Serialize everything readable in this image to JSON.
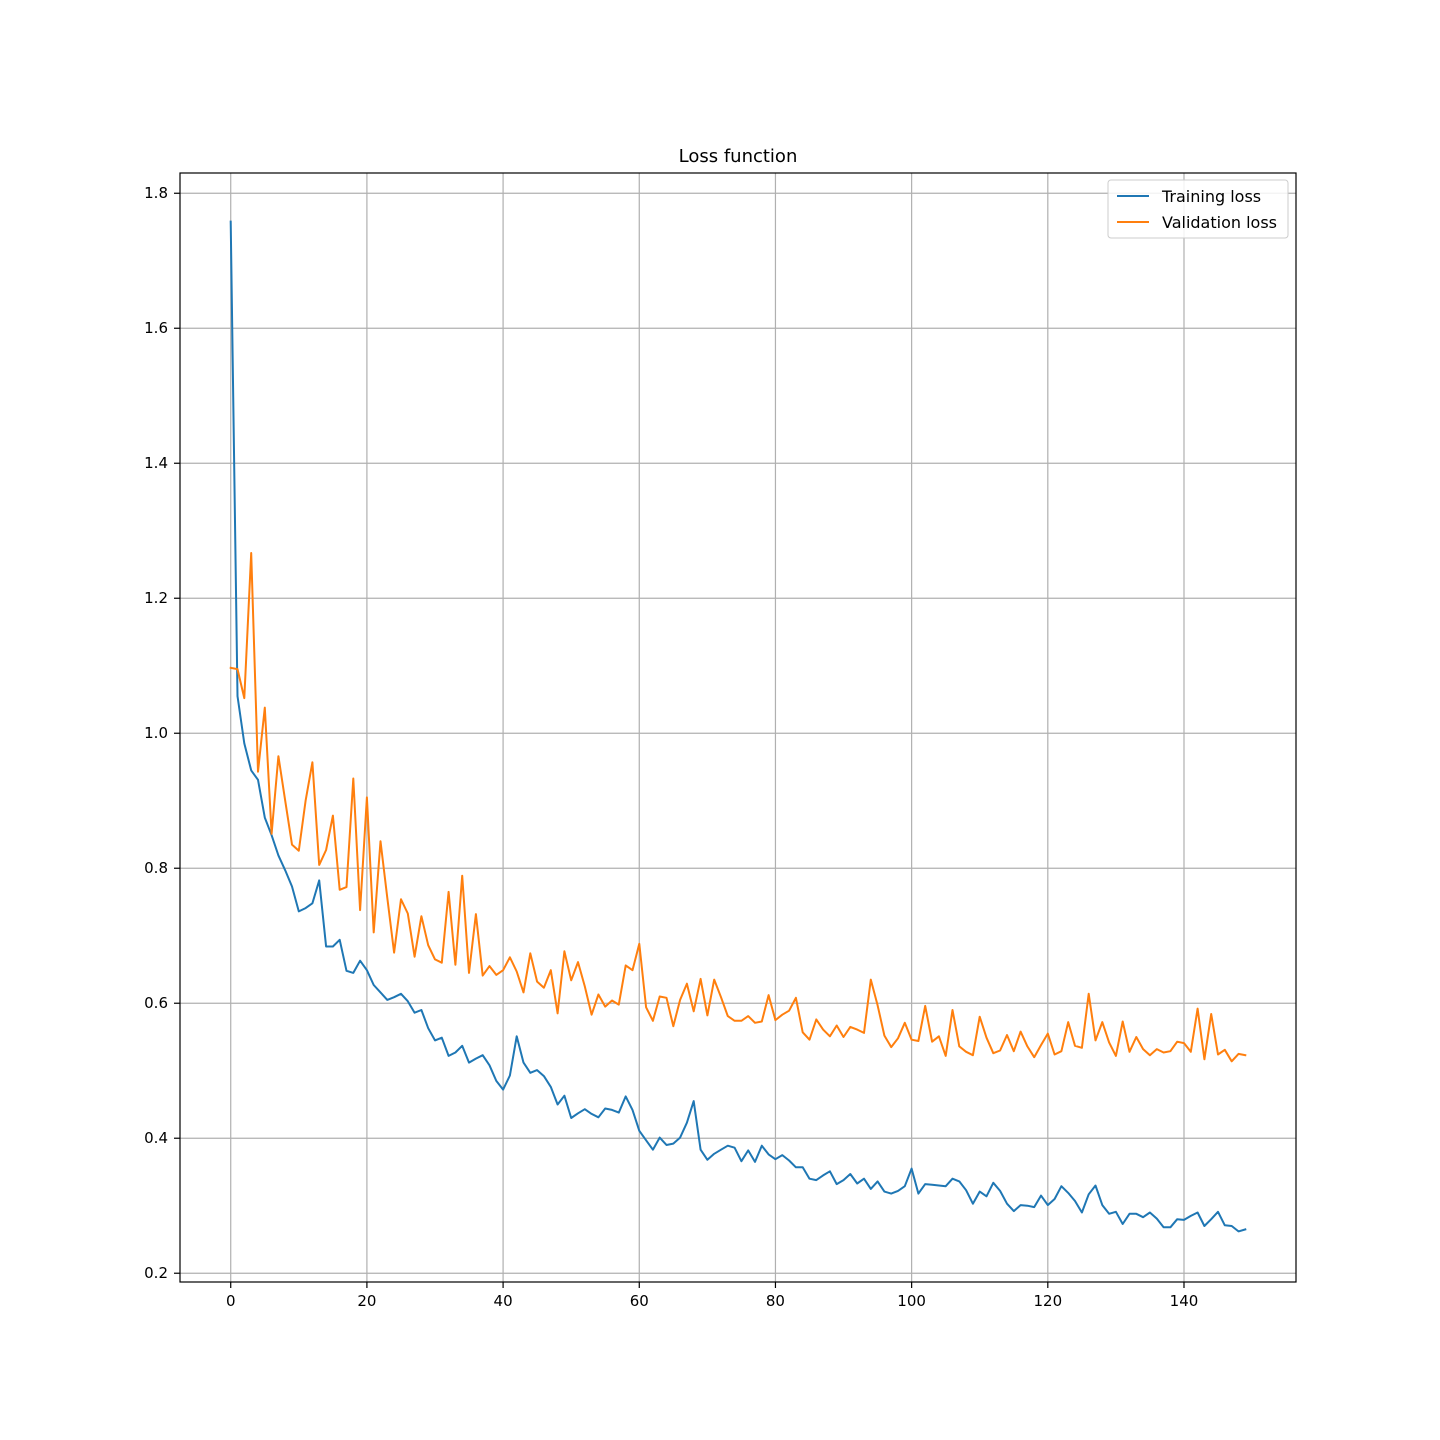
{
  "chart_data": {
    "type": "line",
    "title": "Loss function",
    "xlabel": "",
    "ylabel": "",
    "xlim": [
      -7.45,
      156.45
    ],
    "ylim": [
      0.187,
      1.83
    ],
    "xticks": [
      0,
      20,
      40,
      60,
      80,
      100,
      120,
      140
    ],
    "yticks": [
      0.2,
      0.4,
      0.6,
      0.8,
      1.0,
      1.2,
      1.4,
      1.6,
      1.8
    ],
    "grid": true,
    "legend_position": "top-right",
    "series": [
      {
        "name": "Training loss",
        "color": "#1f77b4",
        "values": [
          1.758,
          1.055,
          0.985,
          0.945,
          0.931,
          0.875,
          0.849,
          0.819,
          0.797,
          0.773,
          0.736,
          0.741,
          0.748,
          0.782,
          0.684,
          0.684,
          0.694,
          0.648,
          0.645,
          0.663,
          0.649,
          0.627,
          0.616,
          0.605,
          0.609,
          0.614,
          0.603,
          0.586,
          0.59,
          0.563,
          0.545,
          0.549,
          0.522,
          0.527,
          0.537,
          0.512,
          0.518,
          0.523,
          0.508,
          0.485,
          0.472,
          0.493,
          0.551,
          0.512,
          0.497,
          0.501,
          0.492,
          0.476,
          0.45,
          0.463,
          0.43,
          0.437,
          0.443,
          0.436,
          0.431,
          0.444,
          0.442,
          0.438,
          0.462,
          0.442,
          0.411,
          0.397,
          0.383,
          0.401,
          0.39,
          0.392,
          0.401,
          0.423,
          0.455,
          0.383,
          0.368,
          0.377,
          0.383,
          0.389,
          0.386,
          0.366,
          0.382,
          0.365,
          0.389,
          0.376,
          0.369,
          0.375,
          0.367,
          0.357,
          0.357,
          0.34,
          0.338,
          0.345,
          0.351,
          0.332,
          0.338,
          0.347,
          0.333,
          0.34,
          0.325,
          0.336,
          0.321,
          0.318,
          0.322,
          0.329,
          0.355,
          0.318,
          0.332,
          0.331,
          0.33,
          0.329,
          0.34,
          0.336,
          0.323,
          0.303,
          0.321,
          0.314,
          0.334,
          0.322,
          0.303,
          0.292,
          0.301,
          0.3,
          0.298,
          0.315,
          0.301,
          0.31,
          0.329,
          0.319,
          0.307,
          0.29,
          0.317,
          0.33,
          0.301,
          0.288,
          0.291,
          0.273,
          0.288,
          0.288,
          0.283,
          0.29,
          0.281,
          0.268,
          0.268,
          0.28,
          0.279,
          0.285,
          0.29,
          0.27,
          0.28,
          0.291,
          0.271,
          0.27,
          0.262,
          0.265
        ]
      },
      {
        "name": "Validation loss",
        "color": "#ff7f0e",
        "values": [
          1.097,
          1.095,
          1.052,
          1.267,
          0.943,
          1.038,
          0.851,
          0.966,
          0.9,
          0.835,
          0.826,
          0.9,
          0.957,
          0.805,
          0.827,
          0.878,
          0.768,
          0.772,
          0.933,
          0.738,
          0.905,
          0.705,
          0.84,
          0.756,
          0.675,
          0.754,
          0.733,
          0.669,
          0.729,
          0.686,
          0.665,
          0.66,
          0.765,
          0.657,
          0.789,
          0.645,
          0.732,
          0.641,
          0.655,
          0.642,
          0.649,
          0.668,
          0.647,
          0.616,
          0.674,
          0.632,
          0.623,
          0.649,
          0.585,
          0.677,
          0.634,
          0.661,
          0.625,
          0.583,
          0.613,
          0.595,
          0.604,
          0.598,
          0.656,
          0.649,
          0.688,
          0.594,
          0.574,
          0.61,
          0.608,
          0.566,
          0.605,
          0.629,
          0.588,
          0.636,
          0.582,
          0.635,
          0.609,
          0.581,
          0.574,
          0.574,
          0.581,
          0.571,
          0.573,
          0.612,
          0.575,
          0.583,
          0.589,
          0.608,
          0.557,
          0.546,
          0.576,
          0.561,
          0.551,
          0.567,
          0.55,
          0.565,
          0.561,
          0.556,
          0.635,
          0.597,
          0.552,
          0.535,
          0.548,
          0.571,
          0.546,
          0.544,
          0.596,
          0.543,
          0.551,
          0.522,
          0.59,
          0.536,
          0.528,
          0.523,
          0.58,
          0.549,
          0.526,
          0.53,
          0.553,
          0.529,
          0.558,
          0.536,
          0.52,
          0.538,
          0.555,
          0.524,
          0.529,
          0.572,
          0.537,
          0.534,
          0.614,
          0.545,
          0.572,
          0.542,
          0.522,
          0.573,
          0.528,
          0.55,
          0.532,
          0.523,
          0.532,
          0.527,
          0.529,
          0.543,
          0.541,
          0.528,
          0.592,
          0.517,
          0.584,
          0.524,
          0.531,
          0.514,
          0.525,
          0.523
        ]
      }
    ]
  }
}
